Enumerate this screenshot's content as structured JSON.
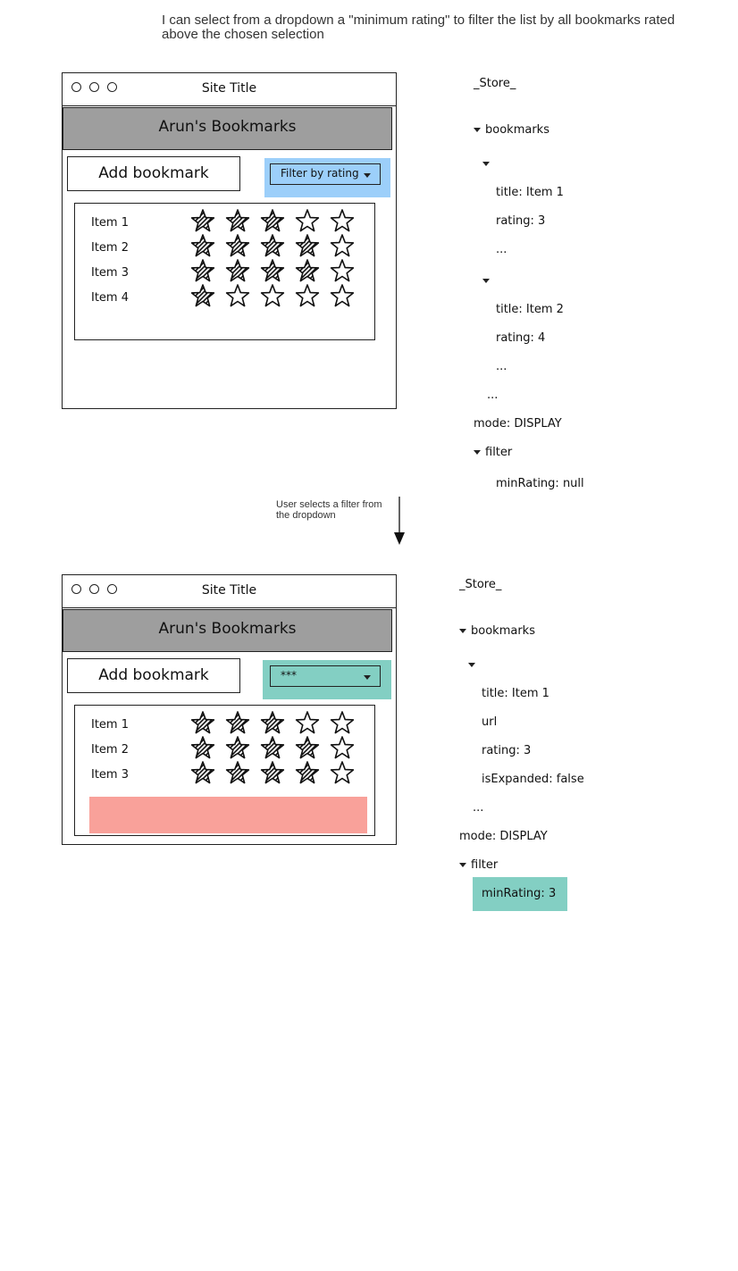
{
  "caption": "I can select from a dropdown a \"minimum rating\" to filter the list by all bookmarks rated above the chosen selection",
  "transition_label": "User selects a filter from the dropdown",
  "colors": {
    "filter_highlight": "#9ccffa",
    "filter_selected": "#83cfc3",
    "empty_slot": "#f9a19a",
    "banner": "#9e9e9e"
  },
  "before": {
    "window": {
      "site_title": "Site Title",
      "banner_title": "Arun's Bookmarks",
      "add_button": "Add bookmark",
      "filter_select": "Filter by rating",
      "items": [
        {
          "label": "Item 1",
          "rating": 3
        },
        {
          "label": "Item 2",
          "rating": 4
        },
        {
          "label": "Item 3",
          "rating": 4
        },
        {
          "label": "Item 4",
          "rating": 1
        }
      ]
    },
    "store": {
      "title": "_Store_",
      "bookmarks_label": "bookmarks",
      "b1_title": "title: Item 1",
      "b1_rating": "rating: 3",
      "b1_more": "...",
      "b2_title": "title: Item 2",
      "b2_rating": "rating: 4",
      "b2_more": "...",
      "list_more": "...",
      "mode": "mode: DISPLAY",
      "filter_label": "filter",
      "min_rating": "minRating: null"
    }
  },
  "after": {
    "window": {
      "site_title": "Site Title",
      "banner_title": "Arun's Bookmarks",
      "add_button": "Add bookmark",
      "filter_select": "***",
      "items": [
        {
          "label": "Item 1",
          "rating": 3
        },
        {
          "label": "Item 2",
          "rating": 4
        },
        {
          "label": "Item 3",
          "rating": 4
        }
      ]
    },
    "store": {
      "title": "_Store_",
      "bookmarks_label": "bookmarks",
      "b1_title": "title: Item 1",
      "b1_url": "url",
      "b1_rating": "rating: 3",
      "b1_expanded": "isExpanded: false",
      "list_more": "...",
      "mode": "mode: DISPLAY",
      "filter_label": "filter",
      "min_rating": "minRating: 3"
    }
  }
}
